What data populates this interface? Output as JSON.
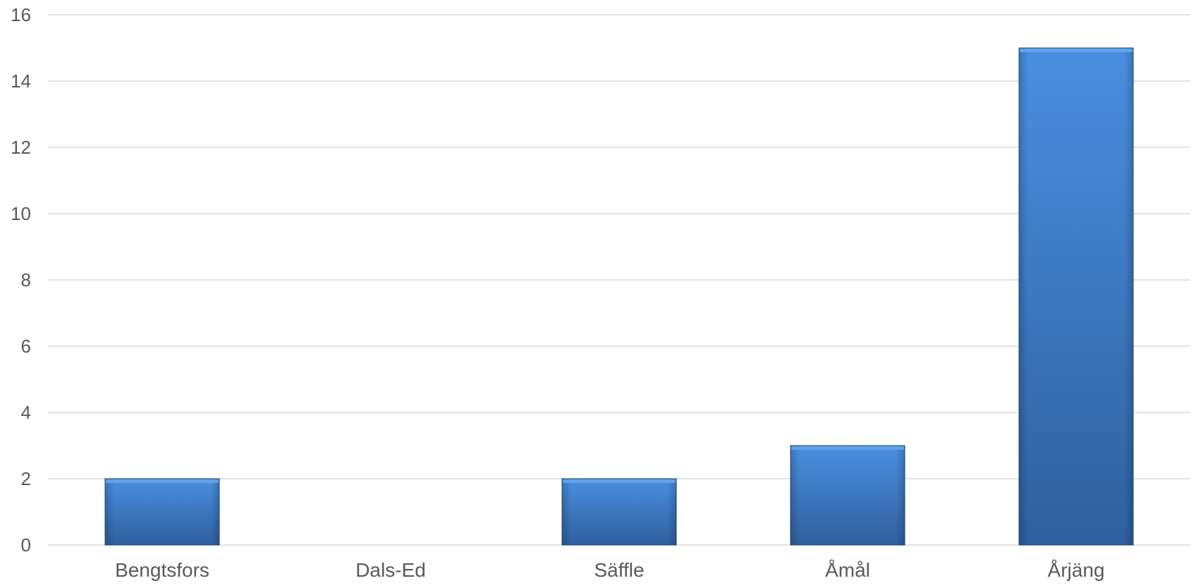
{
  "chart_data": {
    "type": "bar",
    "title": "",
    "xlabel": "",
    "ylabel": "",
    "categories": [
      "Bengtsfors",
      "Dals-Ed",
      "Säffle",
      "Åmål",
      "Årjäng"
    ],
    "values": [
      2,
      0,
      2,
      3,
      15
    ],
    "ylim": [
      0,
      16
    ],
    "yticks": [
      0,
      2,
      4,
      6,
      8,
      10,
      12,
      14,
      16
    ],
    "grid": true,
    "legend": "none",
    "colors": {
      "bar_top": "#4a8fe0",
      "bar_bottom": "#2f5f9e",
      "bar_edge": "#1f4e79",
      "grid": "#d9d9d9",
      "text": "#595959"
    }
  }
}
